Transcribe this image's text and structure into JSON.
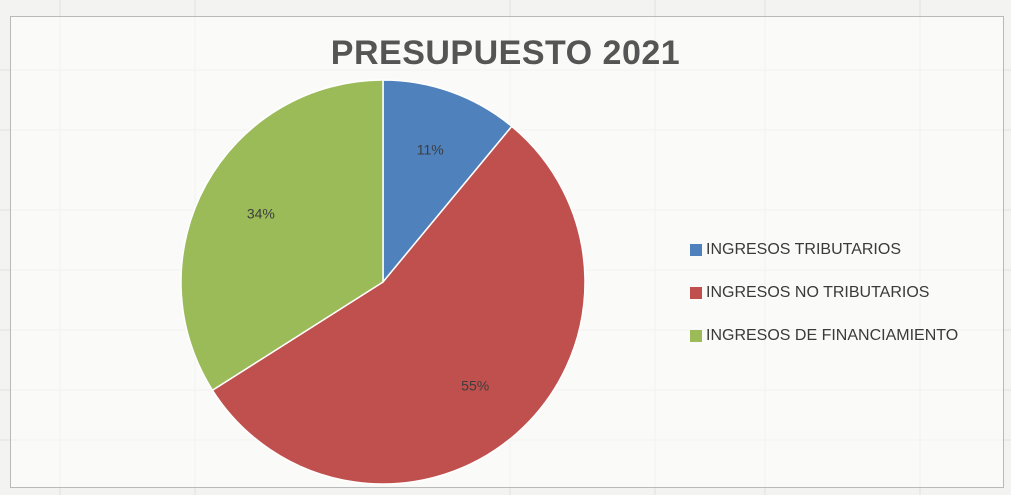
{
  "chart_data": {
    "type": "pie",
    "title": "PRESUPUESTO 2021",
    "categories": [
      "INGRESOS TRIBUTARIOS",
      "INGRESOS NO TRIBUTARIOS",
      "INGRESOS DE FINANCIAMIENTO"
    ],
    "values": [
      11,
      55,
      34
    ],
    "data_labels": [
      "11%",
      "55%",
      "34%"
    ],
    "colors": [
      "#4f81bd",
      "#c0504d",
      "#9bbb59"
    ],
    "legend_position": "right"
  }
}
